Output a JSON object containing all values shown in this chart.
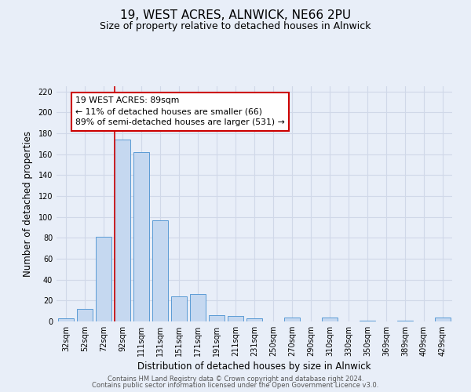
{
  "title": "19, WEST ACRES, ALNWICK, NE66 2PU",
  "subtitle": "Size of property relative to detached houses in Alnwick",
  "xlabel": "Distribution of detached houses by size in Alnwick",
  "ylabel": "Number of detached properties",
  "categories": [
    "32sqm",
    "52sqm",
    "72sqm",
    "92sqm",
    "111sqm",
    "131sqm",
    "151sqm",
    "171sqm",
    "191sqm",
    "211sqm",
    "231sqm",
    "250sqm",
    "270sqm",
    "290sqm",
    "310sqm",
    "330sqm",
    "350sqm",
    "369sqm",
    "389sqm",
    "409sqm",
    "429sqm"
  ],
  "values": [
    3,
    12,
    81,
    174,
    162,
    97,
    24,
    26,
    6,
    5,
    3,
    0,
    4,
    0,
    4,
    0,
    1,
    0,
    1,
    0,
    4
  ],
  "bar_color": "#c5d8f0",
  "bar_edge_color": "#5b9bd5",
  "vline_x_index": 3,
  "vline_color": "#cc0000",
  "annotation_box_text": "19 WEST ACRES: 89sqm\n← 11% of detached houses are smaller (66)\n89% of semi-detached houses are larger (531) →",
  "annotation_box_color": "#cc0000",
  "annotation_bg": "#ffffff",
  "ylim": [
    0,
    225
  ],
  "yticks": [
    0,
    20,
    40,
    60,
    80,
    100,
    120,
    140,
    160,
    180,
    200,
    220
  ],
  "grid_color": "#d0d8e8",
  "bg_color": "#e8eef8",
  "footer1": "Contains HM Land Registry data © Crown copyright and database right 2024.",
  "footer2": "Contains public sector information licensed under the Open Government Licence v3.0.",
  "title_fontsize": 11,
  "subtitle_fontsize": 9,
  "tick_fontsize": 7,
  "label_fontsize": 8.5,
  "annotation_fontsize": 7.8,
  "footer_fontsize": 6
}
